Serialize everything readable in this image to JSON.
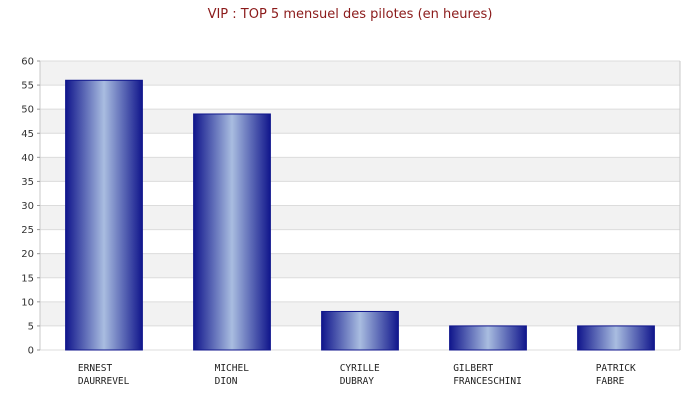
{
  "chart_data": {
    "type": "bar",
    "title": "VIP : TOP 5 mensuel des pilotes (en heures)",
    "categories": [
      [
        "ERNEST",
        "DAURREVEL"
      ],
      [
        "MICHEL",
        "DION"
      ],
      [
        "CYRILLE",
        "DUBRAY"
      ],
      [
        "GILBERT",
        "FRANCESCHINI"
      ],
      [
        "PATRICK",
        "FABRE"
      ]
    ],
    "values": [
      56,
      49,
      8,
      5,
      5
    ],
    "ylim": [
      0,
      60
    ],
    "yticks": [
      0,
      5,
      10,
      15,
      20,
      25,
      30,
      35,
      40,
      45,
      50,
      55,
      60
    ],
    "grid": true,
    "legend": "none",
    "colors": {
      "title": "#8b1a1a",
      "bar_dark": "#10168c",
      "bar_light": "#a9bde0",
      "band": "#f2f2f2",
      "grid": "#dcdcdc"
    }
  }
}
